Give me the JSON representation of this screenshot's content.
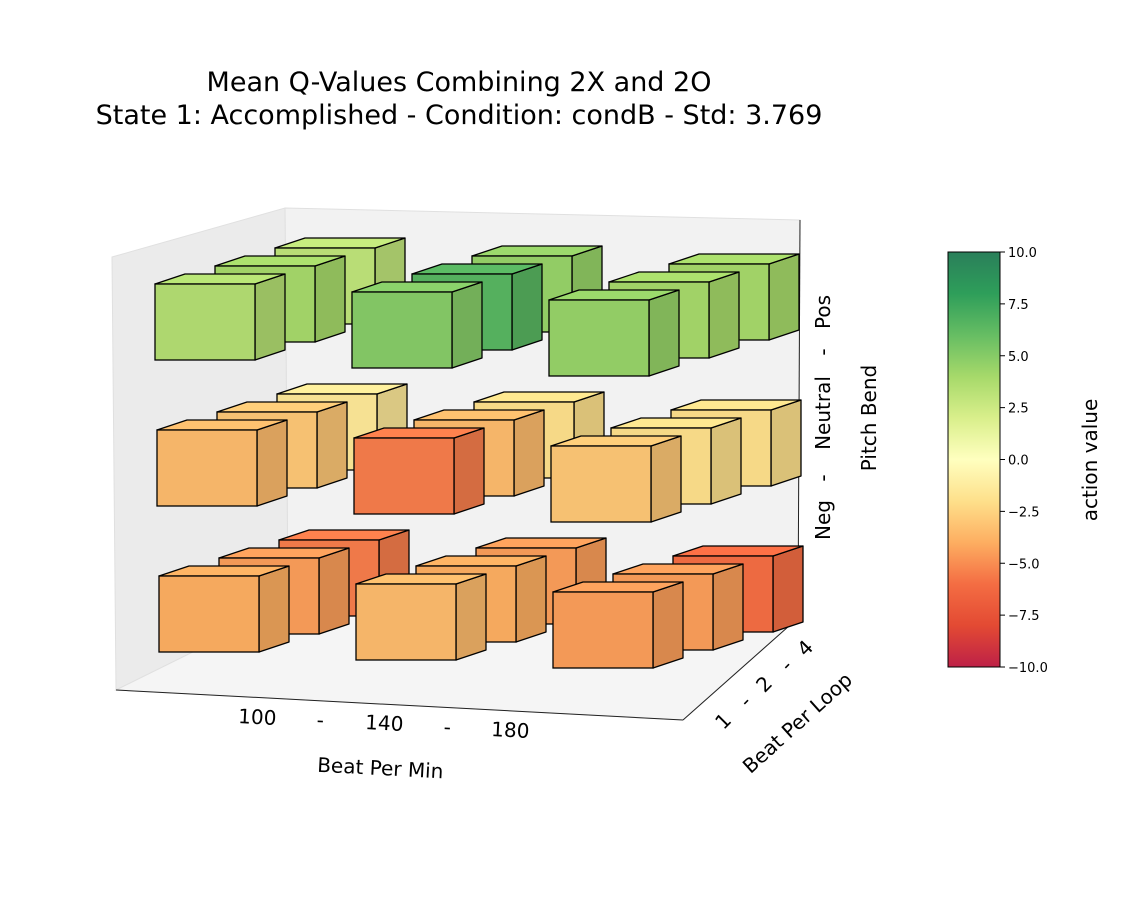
{
  "chart_data": {
    "type": "3d-bar",
    "title": "Mean Q-Values Combining 2X and 2O",
    "subtitle": "State 1: Accomplished  -  Condition: condB  -  Std: 3.769",
    "xlabel": "Beat Per Min",
    "ylabel": "Beat Per Loop",
    "zlabel": "Pitch Bend",
    "x_ticklabels": [
      "100",
      "-",
      "140",
      "-",
      "180"
    ],
    "y_ticklabels": [
      "1",
      "-",
      "2",
      "-",
      "4"
    ],
    "z_ticklabels": [
      "Neg",
      "-",
      "Neutral",
      "-",
      "Pos"
    ],
    "x_categories": [
      "100",
      "140",
      "180"
    ],
    "y_categories": [
      "1",
      "2",
      "4"
    ],
    "z_categories": [
      "Neg",
      "Neutral",
      "Pos"
    ],
    "values": [
      [
        [
          -4.0,
          -4.5,
          -5.5
        ],
        [
          -3.5,
          -3.0,
          -1.5
        ],
        [
          3.5,
          4.0,
          3.0
        ]
      ],
      [
        [
          -3.5,
          -4.0,
          -4.5
        ],
        [
          -5.5,
          -3.5,
          -2.0
        ],
        [
          5.0,
          6.5,
          4.5
        ]
      ],
      [
        [
          -4.5,
          -4.5,
          -6.0
        ],
        [
          -3.0,
          -2.0,
          -2.0
        ],
        [
          4.5,
          4.0,
          4.0
        ]
      ]
    ],
    "colorbar": {
      "label": "action value",
      "min": -10.0,
      "max": 10.0,
      "ticks": [
        "10.0",
        "7.5",
        "5.0",
        "2.5",
        "0.0",
        "−2.5",
        "−5.0",
        "−7.5",
        "−10.0"
      ],
      "colormap": "RdYlGn"
    }
  }
}
